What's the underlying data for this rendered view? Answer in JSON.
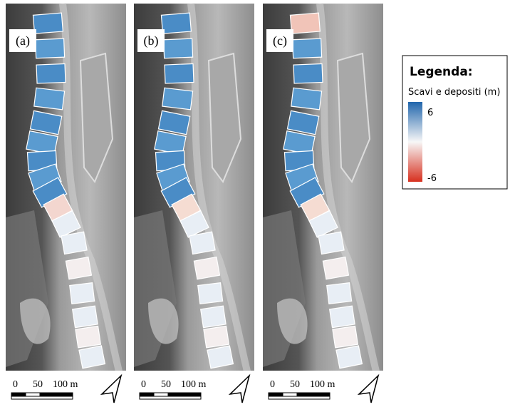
{
  "panels": [
    {
      "label": "(a)",
      "scale": [
        "0",
        "50",
        "100 m"
      ]
    },
    {
      "label": "(b)",
      "scale": [
        "0",
        "50",
        "100 m"
      ]
    },
    {
      "label": "(c)",
      "scale": [
        "0",
        "50",
        "100 m"
      ]
    }
  ],
  "legend": {
    "title": "Legenda:",
    "subtitle": "Scavi e depositi (m)",
    "max": "6",
    "min": "-6"
  }
}
